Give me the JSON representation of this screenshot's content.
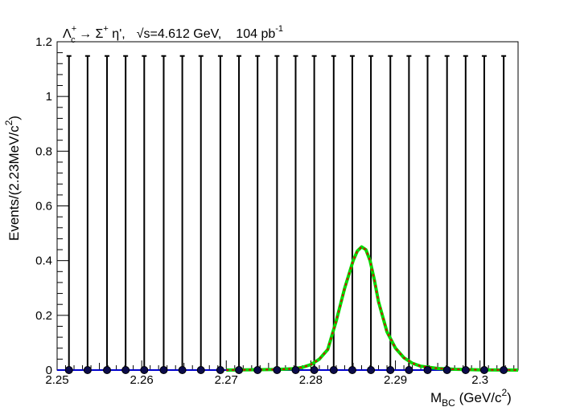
{
  "chart_data": {
    "type": "scatter",
    "title": {
      "decay_main": "Λ",
      "decay_sup1": "+",
      "decay_sub1": "c",
      "decay_arrow": " → Σ",
      "decay_sup2": "+",
      "decay_tail": " η',",
      "energy": "√s=4.612 GeV,",
      "lumi_main": "104 pb",
      "lumi_sup": "-1"
    },
    "xlabel": {
      "main": "M",
      "sub": "BC",
      "unit": " (GeV/c",
      "sup": "2",
      "close": ")"
    },
    "ylabel": {
      "main": "Events/(2.23MeV/c",
      "sup": "2",
      "close": ")"
    },
    "xlim": [
      2.25,
      2.3045
    ],
    "ylim": [
      0,
      1.2
    ],
    "x_ticks": [
      2.25,
      2.26,
      2.27,
      2.28,
      2.29,
      2.3
    ],
    "x_tick_labels": [
      "2.25",
      "2.26",
      "2.27",
      "2.28",
      "2.29",
      "2.3"
    ],
    "y_ticks": [
      0,
      0.2,
      0.4,
      0.6,
      0.8,
      1,
      1.2
    ],
    "y_tick_labels": [
      "0",
      "0.2",
      "0.4",
      "0.6",
      "0.8",
      "1",
      "1.2"
    ],
    "data_points": {
      "x": [
        2.2514,
        2.2536,
        2.2559,
        2.2581,
        2.2603,
        2.2626,
        2.2648,
        2.267,
        2.2693,
        2.2715,
        2.2737,
        2.276,
        2.2782,
        2.2804,
        2.2827,
        2.2849,
        2.2871,
        2.2894,
        2.2916,
        2.2938,
        2.2961,
        2.2983,
        2.3005,
        2.3028
      ],
      "y": [
        0,
        0,
        0,
        0,
        0,
        0,
        0,
        0,
        0,
        0,
        0,
        0,
        0,
        0,
        0,
        0,
        0,
        0,
        0,
        0,
        0,
        0,
        0,
        0
      ],
      "y_error_high": 1.148,
      "color": "#0b0b4a"
    },
    "signal_curve": {
      "color": "#00dd00",
      "x": [
        2.27,
        2.276,
        2.278,
        2.279,
        2.28,
        2.281,
        2.282,
        2.283,
        2.284,
        2.285,
        2.2855,
        2.286,
        2.2865,
        2.287,
        2.2875,
        2.288,
        2.289,
        2.29,
        2.291,
        2.292,
        2.293,
        2.295,
        2.297,
        2.3,
        2.3045
      ],
      "y": [
        0,
        0.002,
        0.005,
        0.01,
        0.02,
        0.04,
        0.075,
        0.18,
        0.3,
        0.4,
        0.435,
        0.45,
        0.44,
        0.4,
        0.33,
        0.25,
        0.14,
        0.08,
        0.045,
        0.025,
        0.014,
        0.006,
        0.003,
        0.001,
        0
      ]
    },
    "total_fit_curve": {
      "color": "#dd0000",
      "style": "dashed"
    },
    "background_line": {
      "color": "#0000cc",
      "y": 0
    }
  }
}
